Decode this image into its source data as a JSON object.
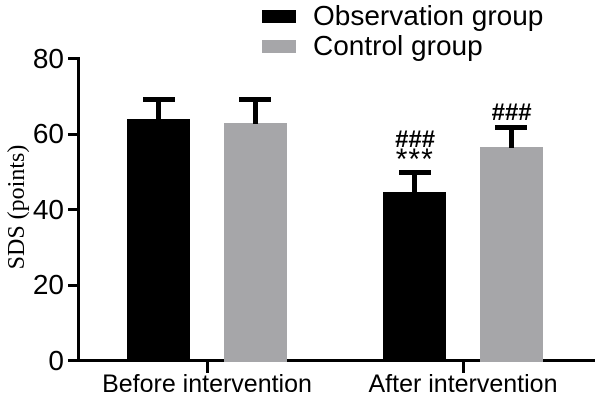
{
  "legend": {
    "items": [
      {
        "label": "Observation group",
        "color": "#000000"
      },
      {
        "label": "Control group",
        "color": "#a6a6a9"
      }
    ]
  },
  "chart_data": {
    "type": "bar",
    "title": "",
    "ylabel": "SDS (points)",
    "xlabel": "",
    "categories": [
      "Before intervention",
      "After intervention"
    ],
    "series": [
      {
        "name": "Observation group",
        "color": "#000000",
        "values": [
          63.9,
          44.6
        ],
        "errors": [
          5.9,
          5.8
        ],
        "annotations": [
          [],
          [
            "###",
            "***"
          ]
        ]
      },
      {
        "name": "Control group",
        "color": "#a6a6a9",
        "values": [
          63.0,
          56.6
        ],
        "errors": [
          6.9,
          5.7
        ],
        "annotations": [
          [],
          [
            "###"
          ]
        ]
      }
    ],
    "ylim": [
      0,
      80
    ],
    "yticks": [
      0,
      20,
      40,
      60,
      80
    ],
    "grid": false,
    "legend_position": "top-center",
    "error_bars": "upper-only"
  }
}
